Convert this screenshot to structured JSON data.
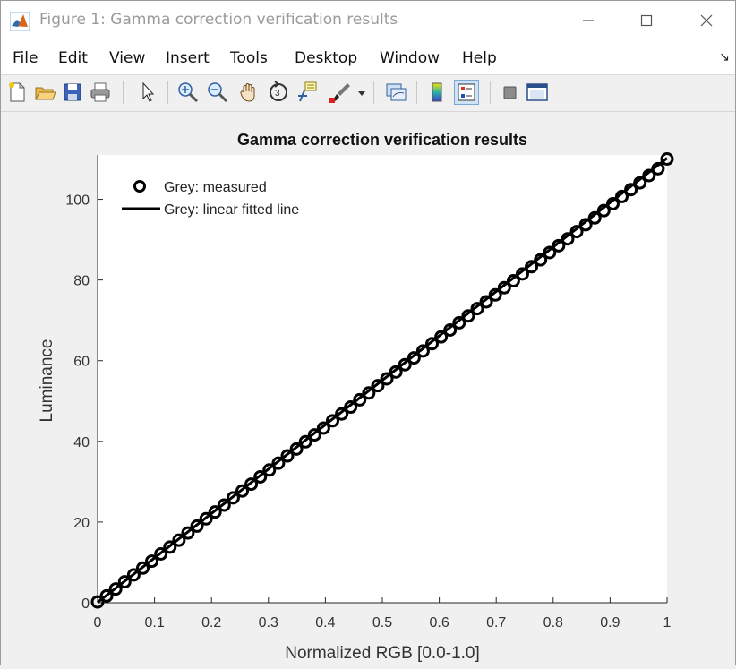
{
  "window": {
    "title": "Figure 1: Gamma correction verification results"
  },
  "menu": {
    "items": [
      "File",
      "Edit",
      "View",
      "Insert",
      "Tools",
      "Desktop",
      "Window",
      "Help"
    ]
  },
  "toolbar": {
    "icons": [
      "new-figure-icon",
      "open-file-icon",
      "save-icon",
      "print-icon",
      "pointer-icon",
      "zoom-in-icon",
      "zoom-out-icon",
      "pan-icon",
      "rotate-icon",
      "data-cursor-icon",
      "brush-icon",
      "brush-dropdown-icon",
      "link-plot-icon",
      "colorbar-icon",
      "legend-icon",
      "hide-plot-tools-icon",
      "show-plot-tools-icon"
    ]
  },
  "chart_data": {
    "type": "scatter",
    "title": "Gamma correction verification results",
    "xlabel": "Normalized RGB [0.0-1.0]",
    "ylabel": "Luminance",
    "xlim": [
      0,
      1
    ],
    "ylim": [
      0,
      111
    ],
    "xticks": [
      "0",
      "0.1",
      "0.2",
      "0.3",
      "0.4",
      "0.5",
      "0.6",
      "0.7",
      "0.8",
      "0.9",
      "1"
    ],
    "yticks": [
      "0",
      "20",
      "40",
      "60",
      "80",
      "100"
    ],
    "grid": false,
    "legend_position": "top-left",
    "series": [
      {
        "name": "Grey: measured",
        "marker": "circle",
        "color": "#000000",
        "x": [
          0,
          0.0159,
          0.0317,
          0.0476,
          0.0635,
          0.0794,
          0.0952,
          0.1111,
          0.127,
          0.1429,
          0.1587,
          0.1746,
          0.1905,
          0.2063,
          0.2222,
          0.2381,
          0.254,
          0.2698,
          0.2857,
          0.3016,
          0.3175,
          0.3333,
          0.3492,
          0.3651,
          0.381,
          0.3968,
          0.4127,
          0.4286,
          0.4444,
          0.4603,
          0.4762,
          0.4921,
          0.5079,
          0.5238,
          0.5397,
          0.5556,
          0.5714,
          0.5873,
          0.6032,
          0.619,
          0.6349,
          0.6508,
          0.6667,
          0.6825,
          0.6984,
          0.7143,
          0.7302,
          0.746,
          0.7619,
          0.7778,
          0.7937,
          0.8095,
          0.8254,
          0.8413,
          0.8571,
          0.873,
          0.8889,
          0.9048,
          0.9206,
          0.9365,
          0.9524,
          0.9683,
          0.9841,
          1.0
        ],
        "y": [
          0.2,
          1.7,
          3.4,
          5.2,
          6.9,
          8.6,
          10.3,
          12.1,
          13.8,
          15.5,
          17.3,
          19.0,
          20.8,
          22.5,
          24.2,
          26.0,
          27.7,
          29.4,
          31.2,
          32.9,
          34.6,
          36.4,
          38.1,
          39.9,
          41.6,
          43.3,
          45.1,
          46.8,
          48.5,
          50.3,
          52.0,
          53.8,
          55.5,
          57.2,
          59.0,
          60.7,
          62.4,
          64.2,
          65.9,
          67.6,
          69.4,
          71.1,
          72.9,
          74.6,
          76.3,
          78.1,
          79.8,
          81.5,
          83.3,
          85.0,
          86.8,
          88.5,
          90.2,
          92.0,
          93.7,
          95.4,
          97.2,
          98.9,
          100.7,
          102.4,
          104.1,
          105.9,
          107.6,
          110.0
        ]
      },
      {
        "name": "Grey: linear fitted line",
        "line": "solid",
        "color": "#000000",
        "x": [
          0,
          1
        ],
        "y": [
          0.1,
          110.2
        ]
      }
    ]
  }
}
